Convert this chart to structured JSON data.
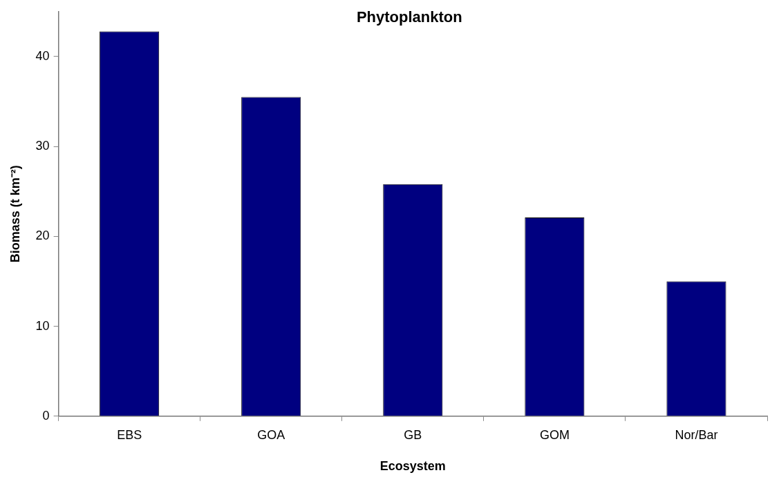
{
  "chart_data": {
    "type": "bar",
    "title": "Phytoplankton",
    "xlabel": "Ecosystem",
    "ylabel": "Biomass (t km⁻²)",
    "categories": [
      "EBS",
      "GOA",
      "GB",
      "GOM",
      "Nor/Bar"
    ],
    "values": [
      42.8,
      35.5,
      25.8,
      22.1,
      15.0
    ],
    "color": "#000080",
    "ylim": [
      0,
      45
    ],
    "yticks": [
      0,
      10,
      20,
      30,
      40
    ],
    "grid": false,
    "legend": false
  }
}
